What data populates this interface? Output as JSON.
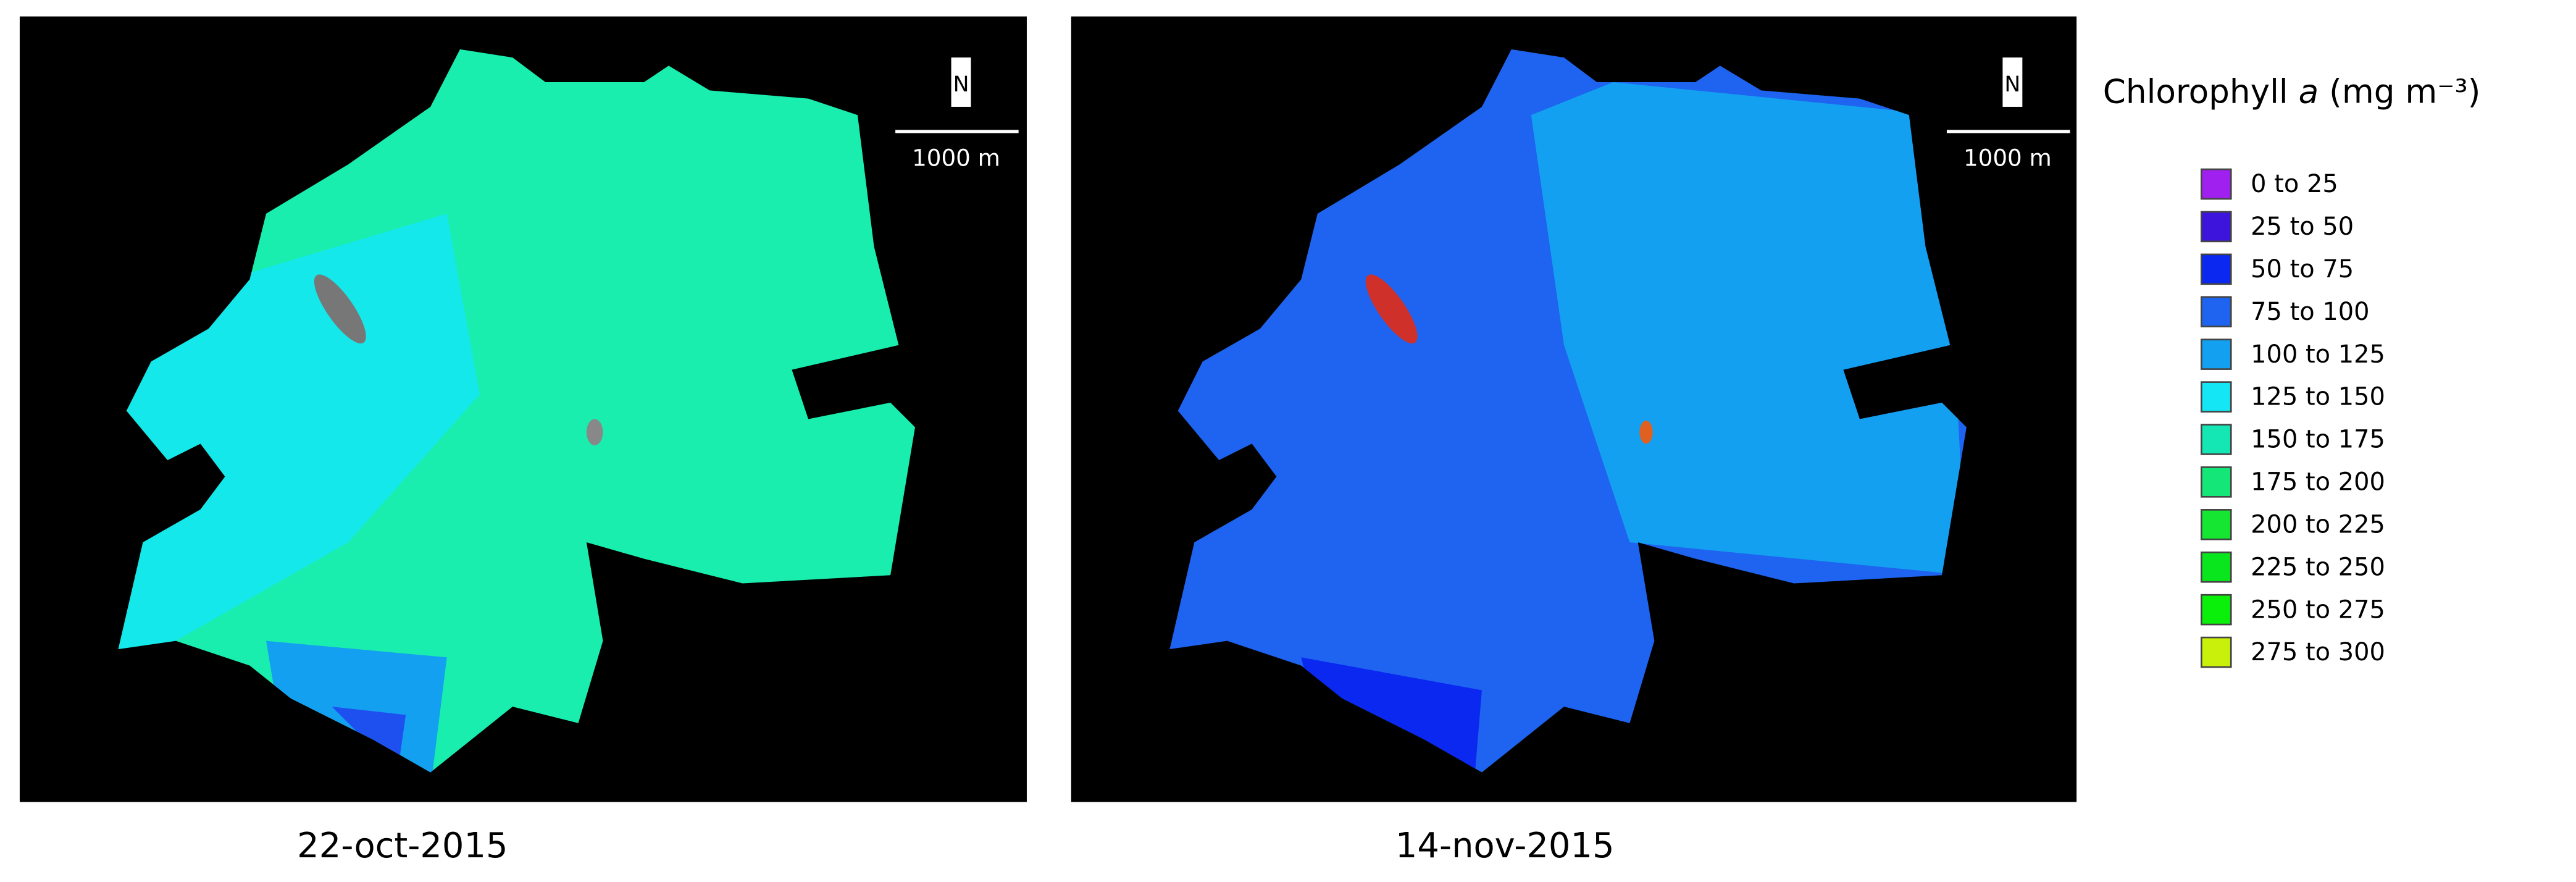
{
  "panels": [
    {
      "date": "22-oct-2015",
      "north_label": "N",
      "scale_label": "1000 m"
    },
    {
      "date": "14-nov-2015",
      "north_label": "N",
      "scale_label": "1000 m"
    }
  ],
  "legend": {
    "title": "Chlorophyll",
    "symbol": "a",
    "unit": "(mg m⁻³)",
    "items": [
      {
        "label": "0 to 25",
        "color": "#a020f0"
      },
      {
        "label": "25 to 50",
        "color": "#3c14dc"
      },
      {
        "label": "50 to 75",
        "color": "#0a28f0"
      },
      {
        "label": "75 to 100",
        "color": "#1e64f0"
      },
      {
        "label": "100 to 125",
        "color": "#14a0f0"
      },
      {
        "label": "125 to 150",
        "color": "#14e6f5"
      },
      {
        "label": "150 to 175",
        "color": "#14e6b4"
      },
      {
        "label": "175 to 200",
        "color": "#14e678"
      },
      {
        "label": "200 to 225",
        "color": "#14e632"
      },
      {
        "label": "225 to 250",
        "color": "#0ae61e"
      },
      {
        "label": "250 to 275",
        "color": "#0af00a"
      },
      {
        "label": "275 to 300",
        "color": "#c8f00a"
      }
    ]
  }
}
